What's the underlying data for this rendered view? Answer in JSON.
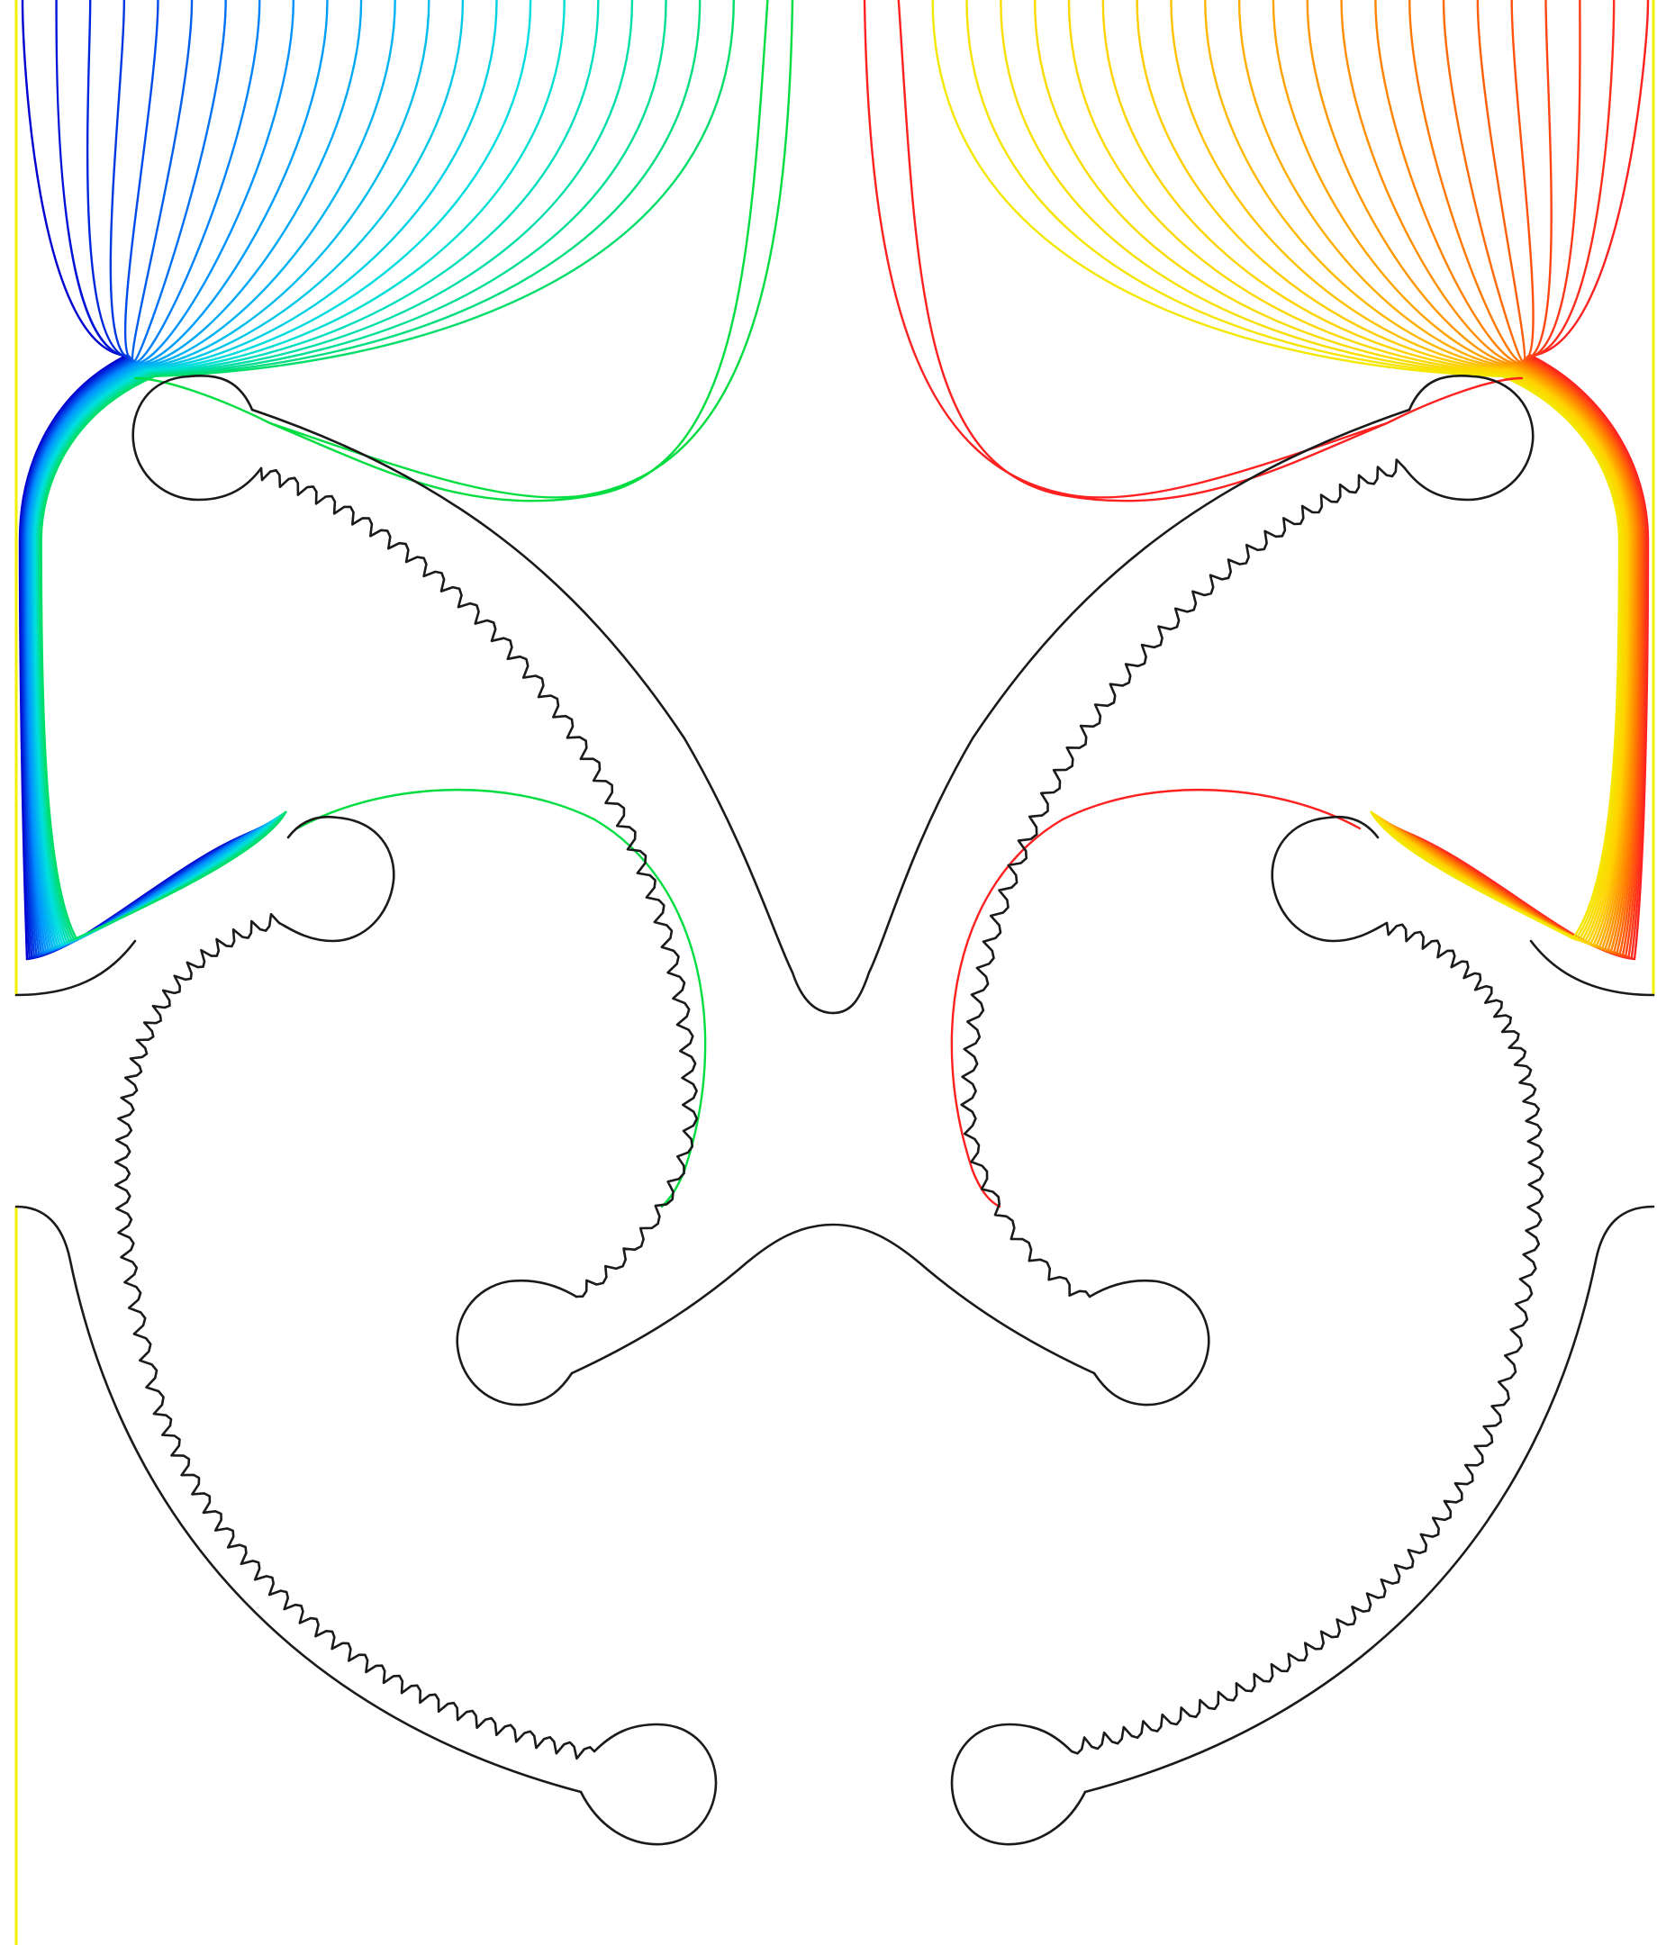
{
  "figure": {
    "kind": "field-line contour plot over a cross-section geometry",
    "colormap": [
      "#0000d0",
      "#0090ff",
      "#00e0e0",
      "#00dd40",
      "#ff2020",
      "#ff8000",
      "#ffd000",
      "#f0f000"
    ],
    "boundary_color": "#1a1a1a",
    "domain_edge_color": "#f2f200",
    "background": "#ffffff",
    "contours_per_side": 24
  }
}
